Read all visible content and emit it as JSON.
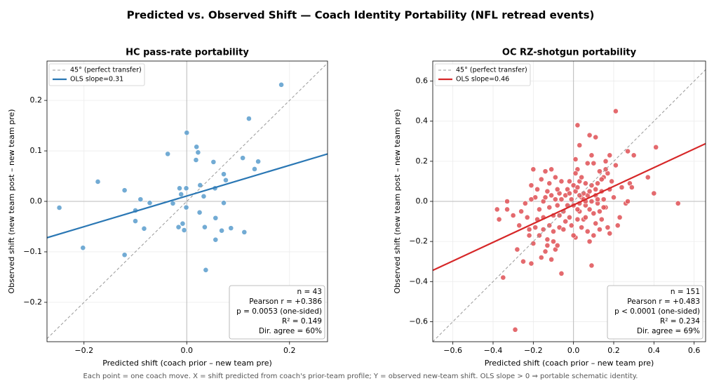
{
  "title": "Predicted vs. Observed Shift — Coach Identity Portability (NFL retread events)",
  "caption": "Each point = one coach move. X = shift predicted from coach's prior-team profile; Y = observed new-team shift. OLS slope > 0 ⇒ portable schematic identity.",
  "chart_data": [
    {
      "type": "scatter",
      "title": "HC pass-rate portability",
      "x_label": "Predicted shift (coach prior – new team pre)",
      "y_label": "Observed shift (new team post – new team pre)",
      "xlim": [
        -0.272,
        0.274
      ],
      "ylim": [
        -0.278,
        0.278
      ],
      "xticks": [
        {
          "value": -0.2,
          "label": "−0.2"
        },
        {
          "value": 0,
          "label": "0.0"
        },
        0.2
      ],
      "yticks": [
        {
          "value": -0.2,
          "label": "−0.2"
        },
        {
          "value": -0.1,
          "label": "−0.1"
        },
        {
          "value": 0,
          "label": "0.0"
        },
        0.1,
        0.2
      ],
      "grid": true,
      "zero_lines": true,
      "legend": "upper left",
      "stats": [
        "n = 43",
        "Pearson r = +0.386",
        "p = 0.0053 (one-sided)",
        "R² = 0.149",
        "Dir. agree = 60%"
      ],
      "lines": [
        {
          "name": "45° (perfect transfer)",
          "color": "#999999",
          "dashed": true,
          "x": [
            -0.272,
            0.274
          ],
          "values": [
            -0.272,
            0.274
          ]
        },
        {
          "name": "OLS  slope=0.31",
          "color": "#2a77b4",
          "dashed": false,
          "x": [
            -0.272,
            0.274
          ],
          "values": [
            -0.072,
            0.094
          ]
        }
      ],
      "points": {
        "color": "#5e9fce",
        "x": [
          -0.248,
          -0.202,
          -0.173,
          -0.121,
          -0.121,
          -0.1,
          -0.1,
          -0.09,
          -0.083,
          -0.072,
          -0.037,
          -0.027,
          -0.016,
          -0.014,
          -0.011,
          -0.008,
          -0.005,
          -0.001,
          -0.001,
          0.0,
          0.018,
          0.019,
          0.022,
          0.025,
          0.026,
          0.033,
          0.035,
          0.037,
          0.052,
          0.055,
          0.056,
          0.056,
          0.068,
          0.072,
          0.072,
          0.076,
          0.086,
          0.109,
          0.112,
          0.121,
          0.132,
          0.139,
          0.184
        ],
        "values": [
          -0.0125,
          -0.092,
          0.039,
          0.022,
          -0.106,
          -0.018,
          -0.039,
          0.004,
          -0.054,
          -0.003,
          0.094,
          -0.004,
          -0.051,
          0.026,
          0.014,
          -0.044,
          -0.057,
          -0.012,
          0.026,
          0.136,
          0.082,
          0.108,
          0.097,
          -0.022,
          0.032,
          0.01,
          -0.051,
          -0.136,
          0.078,
          0.026,
          -0.033,
          -0.076,
          -0.058,
          0.054,
          -0.003,
          0.042,
          -0.053,
          0.086,
          -0.061,
          0.164,
          0.064,
          0.079,
          0.231
        ]
      }
    },
    {
      "type": "scatter",
      "title": "OC RZ-shotgun portability",
      "x_label": "Predicted shift (coach prior – new team pre)",
      "y_label": "Observed shift (new team post – new team pre)",
      "xlim": [
        -0.7,
        0.657
      ],
      "ylim": [
        -0.7,
        0.7
      ],
      "xticks": [
        {
          "value": -0.6,
          "label": "−0.6"
        },
        {
          "value": -0.4,
          "label": "−0.4"
        },
        {
          "value": -0.2,
          "label": "−0.2"
        },
        {
          "value": 0,
          "label": "0.0"
        },
        0.2,
        0.4,
        0.6
      ],
      "yticks": [
        {
          "value": -0.6,
          "label": "−0.6"
        },
        {
          "value": -0.4,
          "label": "−0.4"
        },
        {
          "value": -0.2,
          "label": "−0.2"
        },
        {
          "value": 0,
          "label": "0.0"
        },
        0.2,
        0.4,
        0.6
      ],
      "grid": true,
      "zero_lines": true,
      "legend": "upper left",
      "stats": [
        "n = 151",
        "Pearson r = +0.483",
        "p < 0.0001 (one-sided)",
        "R² = 0.234",
        "Dir. agree = 69%"
      ],
      "lines": [
        {
          "name": "45° (perfect transfer)",
          "color": "#999999",
          "dashed": true,
          "x": [
            -0.7,
            0.657
          ],
          "values": [
            -0.7,
            0.657
          ]
        },
        {
          "name": "OLS  slope=0.46",
          "color": "#d62728",
          "dashed": false,
          "x": [
            -0.7,
            0.657
          ],
          "values": [
            -0.344,
            0.288
          ]
        }
      ],
      "points": {
        "color": "#e0555a",
        "x": [
          -0.35,
          -0.29,
          0.52,
          0.41,
          0.21,
          0.02,
          0.08,
          0.11,
          0.03,
          -0.37,
          -0.38,
          -0.33,
          -0.33,
          0.4,
          0.3,
          0.27,
          0.37,
          -0.06,
          0.09,
          -0.28,
          -0.25,
          -0.21,
          -0.3,
          -0.27,
          -0.22,
          -0.2,
          -0.19,
          -0.18,
          -0.2,
          -0.21,
          -0.16,
          -0.14,
          -0.13,
          -0.11,
          -0.09,
          -0.08,
          -0.15,
          -0.12,
          -0.1,
          -0.07,
          -0.17,
          -0.15,
          -0.14,
          -0.13,
          -0.12,
          -0.11,
          -0.1,
          -0.09,
          -0.08,
          -0.07,
          -0.19,
          -0.16,
          -0.14,
          -0.11,
          -0.09,
          -0.06,
          -0.05,
          -0.04,
          -0.03,
          -0.02,
          -0.01,
          0.0,
          0.01,
          0.01,
          0.02,
          0.02,
          0.03,
          0.03,
          0.04,
          0.04,
          0.05,
          0.05,
          0.06,
          0.06,
          0.07,
          0.07,
          0.08,
          0.08,
          0.09,
          0.09,
          0.1,
          0.1,
          0.11,
          0.11,
          0.12,
          0.12,
          0.13,
          0.13,
          0.14,
          0.14,
          0.15,
          0.15,
          0.16,
          0.16,
          0.17,
          0.17,
          0.18,
          0.18,
          0.19,
          0.2,
          0.21,
          0.22,
          0.23,
          0.24,
          0.26,
          0.27,
          0.28,
          0.29,
          0.18,
          0.16,
          -0.23,
          -0.22,
          -0.24,
          -0.26,
          -0.21,
          -0.18,
          -0.17,
          -0.13,
          -0.1,
          -0.05,
          -0.04,
          -0.03,
          -0.02,
          -0.01,
          0.0,
          0.0,
          0.01,
          0.02,
          0.03,
          0.04,
          0.05,
          0.06,
          0.07,
          0.08,
          0.09,
          0.1,
          0.11,
          0.12,
          0.13,
          0.14,
          -0.06,
          -0.08,
          -0.12,
          -0.15,
          -0.07,
          0.02,
          0.06,
          0.01,
          -0.02,
          0.15,
          0.03
        ],
        "values": [
          -0.38,
          -0.64,
          -0.01,
          0.27,
          0.45,
          0.38,
          0.33,
          0.32,
          0.28,
          -0.09,
          -0.04,
          -0.04,
          0.0,
          0.04,
          0.23,
          0.25,
          0.12,
          -0.36,
          -0.32,
          -0.24,
          -0.3,
          -0.31,
          -0.07,
          -0.12,
          -0.17,
          -0.21,
          -0.13,
          -0.09,
          0.16,
          0.08,
          -0.28,
          -0.25,
          -0.22,
          -0.29,
          -0.24,
          -0.22,
          -0.14,
          -0.12,
          -0.15,
          -0.13,
          -0.04,
          0.0,
          0.02,
          0.05,
          -0.03,
          0.03,
          -0.07,
          0.01,
          -0.02,
          0.04,
          0.02,
          0.11,
          0.15,
          0.16,
          0.12,
          0.1,
          -0.05,
          -0.1,
          0.06,
          -0.08,
          0.01,
          -0.02,
          0.05,
          -0.18,
          0.16,
          -0.09,
          0.1,
          -0.05,
          0.02,
          -0.13,
          0.01,
          -0.09,
          0.09,
          -0.02,
          0.03,
          -0.15,
          0.05,
          -0.2,
          0.0,
          0.23,
          0.19,
          -0.06,
          0.03,
          -0.11,
          0.09,
          -0.01,
          0.15,
          -0.05,
          0.05,
          -0.09,
          0.12,
          0.01,
          -0.03,
          0.2,
          0.14,
          -0.13,
          0.06,
          -0.16,
          0.1,
          0.02,
          0.18,
          -0.12,
          -0.08,
          0.07,
          -0.01,
          0.0,
          0.09,
          0.07,
          0.23,
          0.16,
          -0.08,
          -0.14,
          -0.01,
          -0.05,
          0.01,
          0.06,
          -0.17,
          -0.19,
          -0.2,
          -0.14,
          0.03,
          -0.02,
          0.1,
          -0.12,
          0.08,
          -0.17,
          0.14,
          0.07,
          -0.01,
          0.12,
          0.04,
          -0.08,
          0.19,
          -0.04,
          0.08,
          -0.17,
          0.06,
          0.01,
          -0.14,
          0.11,
          0.01,
          0.06,
          0.09,
          -0.08,
          -0.07,
          -0.04,
          0.0,
          0.21,
          0.04,
          -0.03,
          0.03
        ]
      }
    }
  ]
}
